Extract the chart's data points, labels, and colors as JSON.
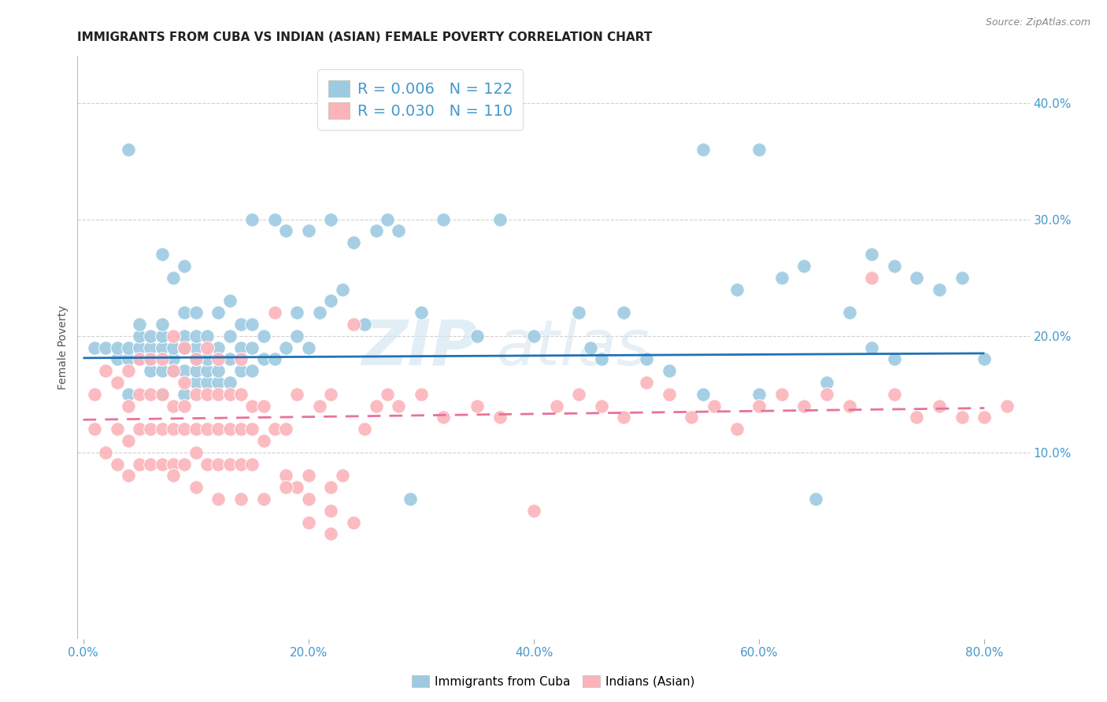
{
  "title": "IMMIGRANTS FROM CUBA VS INDIAN (ASIAN) FEMALE POVERTY CORRELATION CHART",
  "source": "Source: ZipAtlas.com",
  "ylabel": "Female Poverty",
  "xlabel_ticks": [
    "0.0%",
    "20.0%",
    "40.0%",
    "60.0%",
    "80.0%"
  ],
  "xlabel_vals": [
    0.0,
    0.2,
    0.4,
    0.6,
    0.8
  ],
  "ylabel_ticks_right": [
    "40.0%",
    "30.0%",
    "20.0%",
    "10.0%"
  ],
  "ylabel_vals": [
    0.4,
    0.3,
    0.2,
    0.1
  ],
  "xlim": [
    -0.005,
    0.84
  ],
  "ylim": [
    -0.06,
    0.44
  ],
  "blue_color": "#9ecae1",
  "pink_color": "#fbb4b9",
  "blue_line_color": "#2171b5",
  "pink_line_color": "#e8729a",
  "legend_R_blue": "0.006",
  "legend_N_blue": "122",
  "legend_R_pink": "0.030",
  "legend_N_pink": "110",
  "legend_label_blue": "Immigrants from Cuba",
  "legend_label_pink": "Indians (Asian)",
  "watermark_zip": "ZIP",
  "watermark_atlas": "atlas",
  "axis_color": "#4499cc",
  "grid_color": "#d0d0d0",
  "blue_scatter_x": [
    0.01,
    0.02,
    0.03,
    0.03,
    0.04,
    0.04,
    0.04,
    0.05,
    0.05,
    0.05,
    0.05,
    0.06,
    0.06,
    0.06,
    0.06,
    0.07,
    0.07,
    0.07,
    0.07,
    0.07,
    0.07,
    0.08,
    0.08,
    0.08,
    0.08,
    0.09,
    0.09,
    0.09,
    0.09,
    0.09,
    0.09,
    0.1,
    0.1,
    0.1,
    0.1,
    0.1,
    0.1,
    0.11,
    0.11,
    0.11,
    0.11,
    0.12,
    0.12,
    0.12,
    0.12,
    0.13,
    0.13,
    0.13,
    0.13,
    0.14,
    0.14,
    0.14,
    0.15,
    0.15,
    0.15,
    0.15,
    0.16,
    0.16,
    0.17,
    0.17,
    0.18,
    0.18,
    0.19,
    0.19,
    0.2,
    0.2,
    0.21,
    0.22,
    0.22,
    0.23,
    0.24,
    0.25,
    0.26,
    0.27,
    0.28,
    0.29,
    0.3,
    0.32,
    0.35,
    0.37,
    0.4,
    0.44,
    0.45,
    0.46,
    0.48,
    0.5,
    0.52,
    0.55,
    0.58,
    0.6,
    0.62,
    0.64,
    0.66,
    0.68,
    0.7,
    0.72,
    0.74,
    0.76,
    0.78,
    0.8,
    0.55,
    0.6,
    0.65,
    0.7,
    0.72,
    0.04
  ],
  "blue_scatter_y": [
    0.19,
    0.19,
    0.18,
    0.19,
    0.15,
    0.18,
    0.19,
    0.18,
    0.19,
    0.2,
    0.21,
    0.17,
    0.18,
    0.19,
    0.2,
    0.15,
    0.17,
    0.19,
    0.2,
    0.21,
    0.27,
    0.17,
    0.18,
    0.19,
    0.25,
    0.15,
    0.17,
    0.19,
    0.2,
    0.22,
    0.26,
    0.16,
    0.17,
    0.18,
    0.19,
    0.2,
    0.22,
    0.16,
    0.17,
    0.18,
    0.2,
    0.16,
    0.17,
    0.19,
    0.22,
    0.16,
    0.18,
    0.2,
    0.23,
    0.17,
    0.19,
    0.21,
    0.17,
    0.19,
    0.21,
    0.3,
    0.18,
    0.2,
    0.18,
    0.3,
    0.19,
    0.29,
    0.2,
    0.22,
    0.19,
    0.29,
    0.22,
    0.23,
    0.3,
    0.24,
    0.28,
    0.21,
    0.29,
    0.3,
    0.29,
    0.06,
    0.22,
    0.3,
    0.2,
    0.3,
    0.2,
    0.22,
    0.19,
    0.18,
    0.22,
    0.18,
    0.17,
    0.15,
    0.24,
    0.15,
    0.25,
    0.26,
    0.16,
    0.22,
    0.27,
    0.26,
    0.25,
    0.24,
    0.25,
    0.18,
    0.36,
    0.36,
    0.06,
    0.19,
    0.18,
    0.36
  ],
  "pink_scatter_x": [
    0.01,
    0.01,
    0.02,
    0.02,
    0.03,
    0.03,
    0.03,
    0.04,
    0.04,
    0.04,
    0.04,
    0.05,
    0.05,
    0.05,
    0.05,
    0.06,
    0.06,
    0.06,
    0.06,
    0.07,
    0.07,
    0.07,
    0.07,
    0.08,
    0.08,
    0.08,
    0.08,
    0.08,
    0.09,
    0.09,
    0.09,
    0.09,
    0.09,
    0.1,
    0.1,
    0.1,
    0.1,
    0.11,
    0.11,
    0.11,
    0.11,
    0.12,
    0.12,
    0.12,
    0.12,
    0.13,
    0.13,
    0.13,
    0.14,
    0.14,
    0.14,
    0.14,
    0.15,
    0.15,
    0.15,
    0.16,
    0.16,
    0.17,
    0.17,
    0.18,
    0.18,
    0.19,
    0.19,
    0.2,
    0.21,
    0.22,
    0.22,
    0.23,
    0.24,
    0.25,
    0.26,
    0.27,
    0.28,
    0.3,
    0.32,
    0.35,
    0.37,
    0.4,
    0.42,
    0.44,
    0.46,
    0.48,
    0.5,
    0.52,
    0.54,
    0.56,
    0.58,
    0.6,
    0.62,
    0.64,
    0.66,
    0.68,
    0.7,
    0.72,
    0.74,
    0.76,
    0.78,
    0.8,
    0.82,
    0.2,
    0.22,
    0.24,
    0.08,
    0.1,
    0.12,
    0.14,
    0.16,
    0.18,
    0.2,
    0.22
  ],
  "pink_scatter_y": [
    0.12,
    0.15,
    0.1,
    0.17,
    0.09,
    0.12,
    0.16,
    0.08,
    0.11,
    0.14,
    0.17,
    0.09,
    0.12,
    0.15,
    0.18,
    0.09,
    0.12,
    0.15,
    0.18,
    0.09,
    0.12,
    0.15,
    0.18,
    0.09,
    0.12,
    0.14,
    0.17,
    0.2,
    0.09,
    0.12,
    0.14,
    0.16,
    0.19,
    0.1,
    0.12,
    0.15,
    0.18,
    0.09,
    0.12,
    0.15,
    0.19,
    0.09,
    0.12,
    0.15,
    0.18,
    0.09,
    0.12,
    0.15,
    0.09,
    0.12,
    0.15,
    0.18,
    0.09,
    0.12,
    0.14,
    0.11,
    0.14,
    0.12,
    0.22,
    0.08,
    0.12,
    0.07,
    0.15,
    0.08,
    0.14,
    0.07,
    0.15,
    0.08,
    0.21,
    0.12,
    0.14,
    0.15,
    0.14,
    0.15,
    0.13,
    0.14,
    0.13,
    0.05,
    0.14,
    0.15,
    0.14,
    0.13,
    0.16,
    0.15,
    0.13,
    0.14,
    0.12,
    0.14,
    0.15,
    0.14,
    0.15,
    0.14,
    0.25,
    0.15,
    0.13,
    0.14,
    0.13,
    0.13,
    0.14,
    0.04,
    0.03,
    0.04,
    0.08,
    0.07,
    0.06,
    0.06,
    0.06,
    0.07,
    0.06,
    0.05
  ],
  "blue_trend_x": [
    0.0,
    0.8
  ],
  "blue_trend_y": [
    0.181,
    0.185
  ],
  "pink_trend_x": [
    0.0,
    0.8
  ],
  "pink_trend_y": [
    0.128,
    0.138
  ]
}
